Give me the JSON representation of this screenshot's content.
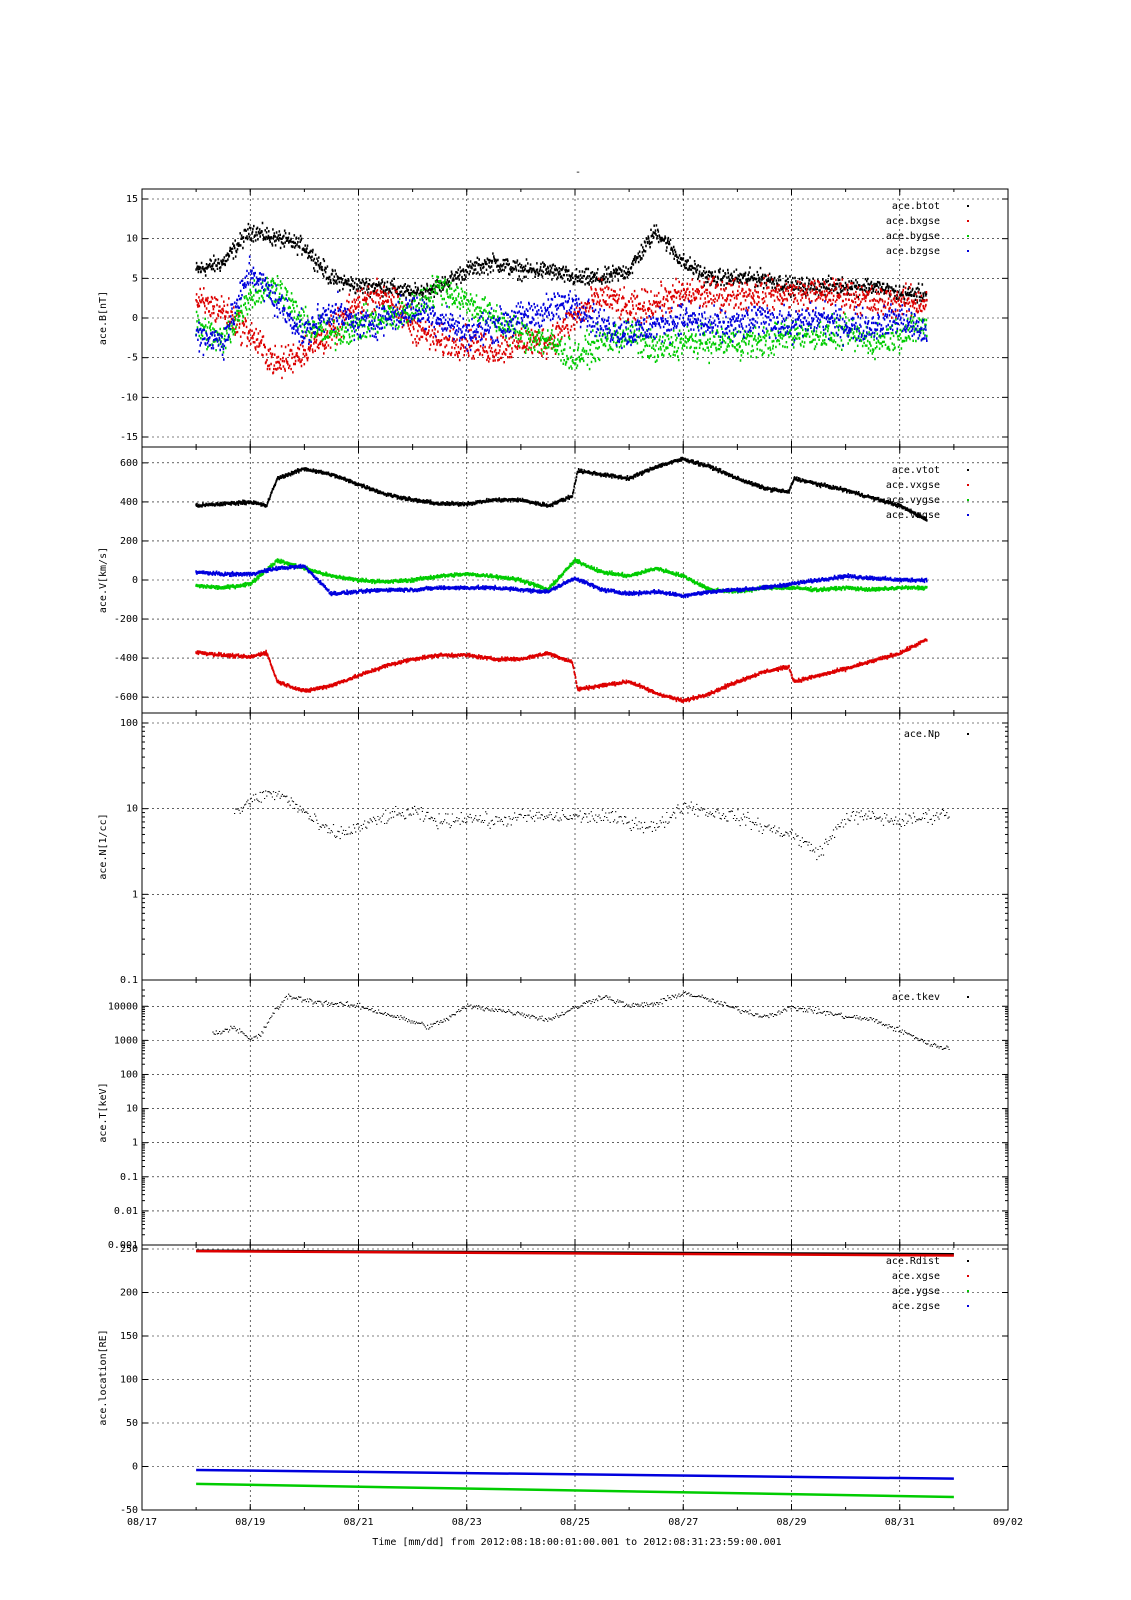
{
  "figure": {
    "title": "-",
    "xlabel": "Time [mm/dd]  from 2012:08:18:00:01:00.001  to  2012:08:31:23:59:00.001"
  },
  "chart_data": [
    {
      "type": "scatter",
      "ylabel": "ace.B[nT]",
      "xlim": [
        "08/17",
        "09/02"
      ],
      "ylim": [
        -15,
        15
      ],
      "yscale": "linear",
      "yticks": [
        15,
        10,
        5,
        0,
        -5,
        -10,
        -15
      ],
      "grid": true,
      "legend_position": "top-right",
      "series": [
        {
          "name": "ace.btot",
          "color": "#000000",
          "x": [
            "08/18.0",
            "08/18.5",
            "08/19.0",
            "08/19.5",
            "08/20.0",
            "08/20.5",
            "08/21.0",
            "08/21.5",
            "08/22.0",
            "08/22.5",
            "08/23.0",
            "08/23.5",
            "08/24.0",
            "08/24.5",
            "08/25.0",
            "08/25.5",
            "08/26.0",
            "08/26.5",
            "08/27.0",
            "08/27.5",
            "08/28.0",
            "08/28.5",
            "08/29.0",
            "08/29.5",
            "08/30.0",
            "08/30.5",
            "08/31.0",
            "08/31.5"
          ],
          "y": [
            6,
            7,
            11,
            10,
            9,
            5,
            4,
            4,
            3,
            4,
            6,
            7,
            6,
            6,
            5,
            5,
            6,
            11,
            7,
            5,
            5,
            5,
            4,
            4,
            4,
            4,
            3,
            3
          ]
        },
        {
          "name": "ace.bxgse",
          "color": "#dd0000",
          "x": [
            "08/18.0",
            "08/18.5",
            "08/19.0",
            "08/19.5",
            "08/20.0",
            "08/20.5",
            "08/21.0",
            "08/21.5",
            "08/22.0",
            "08/22.5",
            "08/23.0",
            "08/23.5",
            "08/24.0",
            "08/24.5",
            "08/25.0",
            "08/25.5",
            "08/26.0",
            "08/26.5",
            "08/27.0",
            "08/27.5",
            "08/28.0",
            "08/28.5",
            "08/29.0",
            "08/29.5",
            "08/30.0",
            "08/30.5",
            "08/31.0",
            "08/31.5"
          ],
          "y": [
            2,
            1,
            -2,
            -6,
            -4,
            -2,
            2,
            3,
            -1,
            -3,
            -3,
            -4,
            -3,
            -3,
            0,
            3,
            1,
            2,
            3,
            3,
            3,
            3,
            3,
            3,
            3,
            2,
            2,
            2
          ]
        },
        {
          "name": "ace.bygse",
          "color": "#00cc00",
          "x": [
            "08/18.0",
            "08/18.5",
            "08/19.0",
            "08/19.5",
            "08/20.0",
            "08/20.5",
            "08/21.0",
            "08/21.5",
            "08/22.0",
            "08/22.5",
            "08/23.0",
            "08/23.5",
            "08/24.0",
            "08/24.5",
            "08/25.0",
            "08/25.5",
            "08/26.0",
            "08/26.5",
            "08/27.0",
            "08/27.5",
            "08/28.0",
            "08/28.5",
            "08/29.0",
            "08/29.5",
            "08/30.0",
            "08/30.5",
            "08/31.0",
            "08/31.5"
          ],
          "y": [
            -1,
            -3,
            3,
            4,
            -1,
            -2,
            -1,
            0,
            1,
            4,
            2,
            0,
            -2,
            -3,
            -5,
            -3,
            -2,
            -4,
            -3,
            -3,
            -3,
            -3,
            -2,
            -2,
            -2,
            -3,
            -2,
            -1
          ]
        },
        {
          "name": "ace.bzgse",
          "color": "#0000dd",
          "x": [
            "08/18.0",
            "08/18.5",
            "08/19.0",
            "08/19.5",
            "08/20.0",
            "08/20.5",
            "08/21.0",
            "08/21.5",
            "08/22.0",
            "08/22.5",
            "08/23.0",
            "08/23.5",
            "08/24.0",
            "08/24.5",
            "08/25.0",
            "08/25.5",
            "08/26.0",
            "08/26.5",
            "08/27.0",
            "08/27.5",
            "08/28.0",
            "08/28.5",
            "08/29.0",
            "08/29.5",
            "08/30.0",
            "08/30.5",
            "08/31.0",
            "08/31.5"
          ],
          "y": [
            -2,
            -3,
            6,
            2,
            -2,
            1,
            -1,
            0,
            1,
            0,
            -2,
            -1,
            0,
            1,
            2,
            -1,
            -2,
            -1,
            0,
            -1,
            -1,
            0,
            -1,
            0,
            -1,
            -1,
            0,
            -2
          ]
        }
      ]
    },
    {
      "type": "scatter",
      "ylabel": "ace.V[km/s]",
      "xlim": [
        "08/17",
        "09/02"
      ],
      "ylim": [
        -630,
        630
      ],
      "yscale": "linear",
      "yticks": [
        600,
        400,
        200,
        0,
        -200,
        -400,
        -600
      ],
      "grid": true,
      "legend_position": "top-right",
      "series": [
        {
          "name": "ace.vtot",
          "color": "#000000",
          "x": [
            "08/18.0",
            "08/18.5",
            "08/19.0",
            "08/19.3",
            "08/19.5",
            "08/20.0",
            "08/20.5",
            "08/21.0",
            "08/21.5",
            "08/22.0",
            "08/22.5",
            "08/23.0",
            "08/23.5",
            "08/24.0",
            "08/24.5",
            "08/24.95",
            "08/25.05",
            "08/25.5",
            "08/26.0",
            "08/26.5",
            "08/27.0",
            "08/27.5",
            "08/28.0",
            "08/28.5",
            "08/28.95",
            "08/29.05",
            "08/29.5",
            "08/30.0",
            "08/30.5",
            "08/31.0",
            "08/31.5"
          ],
          "y": [
            380,
            390,
            400,
            380,
            520,
            570,
            540,
            490,
            440,
            410,
            390,
            390,
            410,
            410,
            380,
            430,
            560,
            540,
            520,
            580,
            620,
            580,
            520,
            470,
            450,
            520,
            490,
            460,
            420,
            380,
            310
          ]
        },
        {
          "name": "ace.vxgse",
          "color": "#dd0000",
          "x": [
            "08/18.0",
            "08/18.5",
            "08/19.0",
            "08/19.3",
            "08/19.5",
            "08/20.0",
            "08/20.5",
            "08/21.0",
            "08/21.5",
            "08/22.0",
            "08/22.5",
            "08/23.0",
            "08/23.5",
            "08/24.0",
            "08/24.5",
            "08/24.95",
            "08/25.05",
            "08/25.5",
            "08/26.0",
            "08/26.5",
            "08/27.0",
            "08/27.5",
            "08/28.0",
            "08/28.5",
            "08/28.95",
            "08/29.05",
            "08/29.5",
            "08/30.0",
            "08/30.5",
            "08/31.0",
            "08/31.5"
          ],
          "y": [
            -370,
            -385,
            -395,
            -370,
            -520,
            -570,
            -540,
            -490,
            -440,
            -405,
            -385,
            -385,
            -405,
            -405,
            -375,
            -420,
            -560,
            -540,
            -520,
            -580,
            -620,
            -580,
            -520,
            -470,
            -445,
            -520,
            -490,
            -455,
            -415,
            -375,
            -305
          ]
        },
        {
          "name": "ace.vygse",
          "color": "#00cc00",
          "x": [
            "08/18.0",
            "08/18.5",
            "08/19.0",
            "08/19.5",
            "08/20.0",
            "08/20.5",
            "08/21.0",
            "08/21.5",
            "08/22.0",
            "08/22.5",
            "08/23.0",
            "08/23.5",
            "08/24.0",
            "08/24.5",
            "08/25.0",
            "08/25.5",
            "08/26.0",
            "08/26.5",
            "08/27.0",
            "08/27.5",
            "08/28.0",
            "08/28.5",
            "08/29.0",
            "08/29.5",
            "08/30.0",
            "08/30.5",
            "08/31.0",
            "08/31.5"
          ],
          "y": [
            -30,
            -40,
            -20,
            100,
            60,
            20,
            0,
            -10,
            0,
            20,
            30,
            20,
            0,
            -50,
            100,
            40,
            20,
            60,
            20,
            -50,
            -60,
            -40,
            -40,
            -50,
            -40,
            -50,
            -40,
            -40
          ]
        },
        {
          "name": "ace.vzgse",
          "color": "#0000dd",
          "x": [
            "08/18.0",
            "08/18.5",
            "08/19.0",
            "08/19.5",
            "08/20.0",
            "08/20.5",
            "08/21.0",
            "08/21.5",
            "08/22.0",
            "08/22.5",
            "08/23.0",
            "08/23.5",
            "08/24.0",
            "08/24.5",
            "08/25.0",
            "08/25.5",
            "08/26.0",
            "08/26.5",
            "08/27.0",
            "08/27.5",
            "08/28.0",
            "08/28.5",
            "08/29.0",
            "08/29.5",
            "08/30.0",
            "08/30.5",
            "08/31.0",
            "08/31.5"
          ],
          "y": [
            40,
            30,
            30,
            60,
            70,
            -70,
            -60,
            -50,
            -50,
            -40,
            -40,
            -40,
            -50,
            -60,
            10,
            -50,
            -70,
            -60,
            -80,
            -60,
            -50,
            -40,
            -20,
            0,
            20,
            10,
            0,
            0
          ]
        }
      ]
    },
    {
      "type": "scatter",
      "ylabel": "ace.N[1/cc]",
      "xlim": [
        "08/17",
        "09/02"
      ],
      "ylim": [
        0.1,
        100
      ],
      "yscale": "log",
      "yticks": [
        100,
        10,
        1,
        0.1
      ],
      "grid": true,
      "legend_position": "top-right",
      "series": [
        {
          "name": "ace.Np",
          "color": "#000000",
          "x": [
            "08/18.7",
            "08/19.0",
            "08/19.3",
            "08/19.6",
            "08/20.0",
            "08/20.3",
            "08/20.6",
            "08/21.0",
            "08/21.5",
            "08/22.0",
            "08/22.5",
            "08/23.0",
            "08/23.5",
            "08/24.0",
            "08/24.5",
            "08/25.0",
            "08/25.5",
            "08/26.0",
            "08/26.5",
            "08/27.0",
            "08/27.5",
            "08/28.0",
            "08/28.5",
            "08/29.0",
            "08/29.5",
            "08/30.0",
            "08/30.5",
            "08/31.0",
            "08/31.5",
            "08/31.9"
          ],
          "y": [
            9,
            12,
            15,
            14,
            9,
            6,
            5,
            6,
            8,
            9,
            7,
            8,
            7,
            8,
            8,
            8,
            8,
            7,
            6,
            11,
            9,
            8,
            6,
            5,
            3,
            8,
            8,
            7,
            8,
            9
          ]
        }
      ]
    },
    {
      "type": "scatter",
      "ylabel": "ace.T[keV]",
      "xlim": [
        "08/17",
        "09/02"
      ],
      "ylim": [
        0.001,
        30000
      ],
      "yscale": "log",
      "yticks": [
        10000,
        1000,
        100,
        10,
        1,
        0.1,
        0.01,
        0.001
      ],
      "grid": true,
      "legend_position": "top-right",
      "series": [
        {
          "name": "ace.tkev",
          "color": "#000000",
          "x": [
            "08/18.3",
            "08/18.7",
            "08/19.0",
            "08/19.2",
            "08/19.4",
            "08/19.7",
            "08/20.0",
            "08/20.5",
            "08/21.0",
            "08/21.5",
            "08/22.3",
            "08/22.6",
            "08/23.0",
            "08/23.5",
            "08/24.0",
            "08/24.5",
            "08/25.0",
            "08/25.5",
            "08/26.0",
            "08/26.5",
            "08/27.0",
            "08/27.5",
            "08/28.0",
            "08/28.5",
            "08/29.0",
            "08/29.5",
            "08/30.0",
            "08/30.5",
            "08/31.3",
            "08/31.6",
            "08/31.9"
          ],
          "y": [
            1500,
            2500,
            1000,
            1500,
            6000,
            20000,
            15000,
            12000,
            10000,
            6000,
            2500,
            4000,
            10000,
            8000,
            6000,
            4000,
            9000,
            20000,
            10000,
            12000,
            25000,
            15000,
            8000,
            5000,
            9000,
            7000,
            5000,
            4000,
            1200,
            700,
            600
          ]
        }
      ]
    },
    {
      "type": "line",
      "ylabel": "ace.location[RE]",
      "xlim": [
        "08/17",
        "09/02"
      ],
      "ylim": [
        -50,
        250
      ],
      "yscale": "linear",
      "yticks": [
        250,
        200,
        150,
        100,
        50,
        0,
        -50
      ],
      "grid": true,
      "legend_position": "top-right",
      "series": [
        {
          "name": "ace.Rdist",
          "color": "#000000",
          "x": [
            "08/18",
            "08/32"
          ],
          "y": [
            248,
            244
          ]
        },
        {
          "name": "ace.xgse",
          "color": "#dd0000",
          "x": [
            "08/18",
            "08/32"
          ],
          "y": [
            247.5,
            242.5
          ]
        },
        {
          "name": "ace.ygse",
          "color": "#00cc00",
          "x": [
            "08/18",
            "08/32"
          ],
          "y": [
            -20,
            -35
          ]
        },
        {
          "name": "ace.zgse",
          "color": "#0000dd",
          "x": [
            "08/18",
            "08/32"
          ],
          "y": [
            -4,
            -14
          ]
        }
      ]
    }
  ],
  "xticks": [
    "08/17",
    "08/19",
    "08/21",
    "08/23",
    "08/25",
    "08/27",
    "08/29",
    "08/31",
    "09/02"
  ],
  "colors": {
    "black": "#000000",
    "red": "#dd0000",
    "green": "#00cc00",
    "blue": "#0000dd"
  }
}
